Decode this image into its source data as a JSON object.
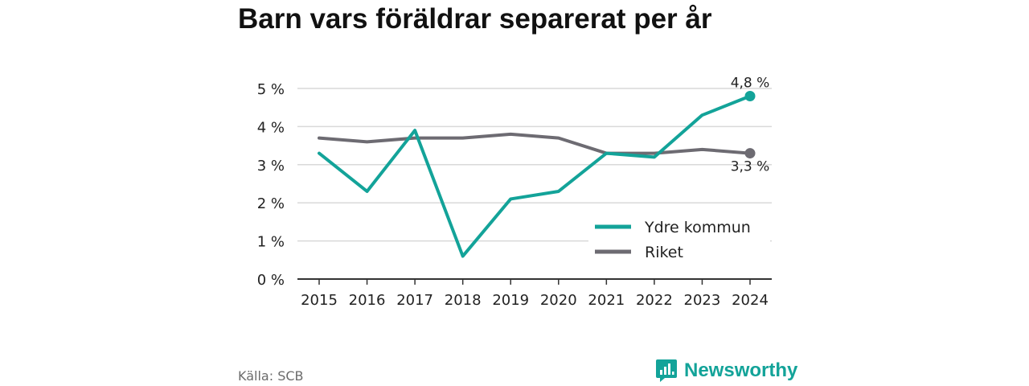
{
  "title": "Barn vars föräldrar separerat per år",
  "source": "Källa: SCB",
  "brand": {
    "name": "Newsworthy",
    "color": "#13a399",
    "icon": "newsworthy-logo-icon"
  },
  "chart_data": {
    "type": "line",
    "title": "Barn vars föräldrar separerat per år",
    "categories": [
      "2015",
      "2016",
      "2017",
      "2018",
      "2019",
      "2020",
      "2021",
      "2022",
      "2023",
      "2024"
    ],
    "series": [
      {
        "name": "Ydre kommun",
        "color": "#13a399",
        "values": [
          3.3,
          2.3,
          3.9,
          0.6,
          2.1,
          2.3,
          3.3,
          3.2,
          4.3,
          4.8
        ],
        "end_label": "4,8 %"
      },
      {
        "name": "Riket",
        "color": "#6d6b72",
        "values": [
          3.7,
          3.6,
          3.7,
          3.7,
          3.8,
          3.7,
          3.3,
          3.3,
          3.4,
          3.3
        ],
        "end_label": "3,3 %"
      }
    ],
    "yticks": [
      {
        "value": 0,
        "label": "0 %"
      },
      {
        "value": 1,
        "label": "1 %"
      },
      {
        "value": 2,
        "label": "2 %"
      },
      {
        "value": 3,
        "label": "3 %"
      },
      {
        "value": 4,
        "label": "4 %"
      },
      {
        "value": 5,
        "label": "5 %"
      }
    ],
    "ylim": [
      0,
      5
    ],
    "grid": true,
    "legend": "bottom-right",
    "xlabel": "",
    "ylabel": ""
  }
}
